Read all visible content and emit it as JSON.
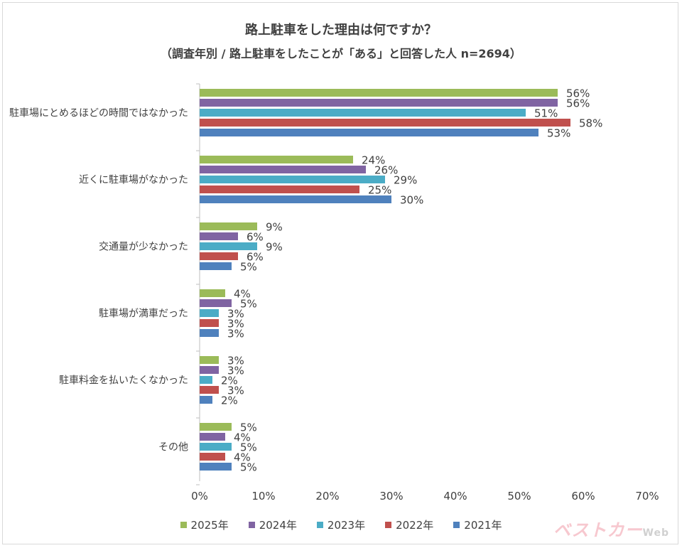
{
  "chart_data": {
    "type": "bar",
    "orientation": "horizontal",
    "title": "路上駐車をした理由は何ですか？",
    "subtitle": "（調査年別 / 路上駐車をしたことが「ある」と回答した人 n=2694）",
    "categories": [
      "駐車場にとめるほどの時間ではなかった",
      "近くに駐車場がなかった",
      "交通量が少なかった",
      "駐車場が満車だった",
      "駐車料金を払いたくなかった",
      "その他"
    ],
    "series": [
      {
        "name": "2025年",
        "color": "#9bbb59",
        "values": [
          56,
          24,
          9,
          4,
          3,
          5
        ]
      },
      {
        "name": "2024年",
        "color": "#8064a2",
        "values": [
          56,
          26,
          6,
          5,
          3,
          4
        ]
      },
      {
        "name": "2023年",
        "color": "#4bacc6",
        "values": [
          51,
          29,
          9,
          3,
          2,
          5
        ]
      },
      {
        "name": "2022年",
        "color": "#c0504d",
        "values": [
          58,
          25,
          6,
          3,
          3,
          4
        ]
      },
      {
        "name": "2021年",
        "color": "#4f81bd",
        "values": [
          53,
          30,
          5,
          3,
          2,
          5
        ]
      }
    ],
    "xlim": [
      0,
      70
    ],
    "xticks": [
      "0%",
      "10%",
      "20%",
      "30%",
      "40%",
      "50%",
      "60%",
      "70%"
    ],
    "value_suffix": "%",
    "grid": false,
    "legend_position": "bottom"
  },
  "watermark": {
    "main": "ベストカー",
    "sub": "Web"
  }
}
